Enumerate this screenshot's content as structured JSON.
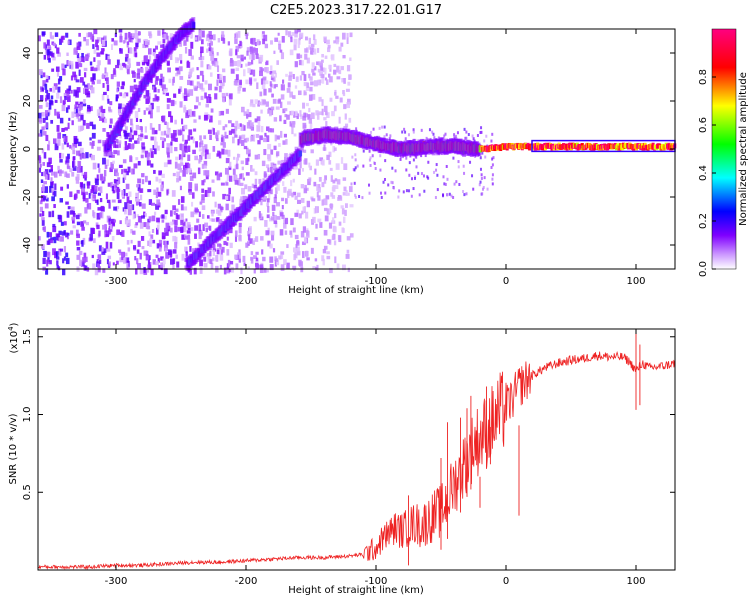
{
  "title": "C2E5.2023.317.22.01.G17",
  "chart_data": [
    {
      "type": "heatmap",
      "xlabel": "Height of straight line (km)",
      "ylabel": "Frequency (Hz)",
      "xlim": [
        -360,
        130
      ],
      "ylim": [
        -50,
        50
      ],
      "x_ticks": [
        -300,
        -200,
        -100,
        0,
        100
      ],
      "x_tick_labels": [
        "-300",
        "-200",
        "-100",
        "0",
        "100"
      ],
      "y_ticks": [
        -40,
        -20,
        0,
        20,
        40
      ],
      "y_tick_labels": [
        "-40",
        "-20",
        "0",
        "20",
        "40"
      ],
      "colorbar": {
        "label": "Normalized spectral amplitude",
        "range": [
          0.0,
          1.0
        ],
        "ticks": [
          0.0,
          0.2,
          0.4,
          0.6,
          0.8
        ],
        "tick_labels": [
          "0.0",
          "0.2",
          "0.4",
          "0.6",
          "0.8"
        ],
        "colormap": [
          "#ffffff",
          "#7f00ff",
          "#0000ff",
          "#00ffff",
          "#00ff00",
          "#ffff00",
          "#ff0000",
          "#ff0080"
        ]
      },
      "tracks": [
        {
          "name_hidden": true,
          "x": [
            -308,
            -295,
            -280,
            -265,
            -250,
            -240
          ],
          "y": [
            0,
            12,
            26,
            38,
            48,
            52
          ],
          "amplitude": 0.3
        },
        {
          "name_hidden": true,
          "x": [
            -245,
            -230,
            -215,
            -200,
            -185,
            -170,
            -158
          ],
          "y": [
            -48,
            -40,
            -32,
            -24,
            -16,
            -8,
            -2
          ],
          "amplitude": 0.35
        },
        {
          "name_hidden": true,
          "x": [
            -158,
            -140,
            -120,
            -100,
            -80,
            -60,
            -40,
            -20,
            0,
            40,
            80,
            130
          ],
          "y": [
            4,
            6,
            5,
            2,
            0,
            1,
            1,
            0,
            1,
            1,
            1,
            1
          ],
          "amplitude": 0.75
        }
      ],
      "noise_region": {
        "x_from": -360,
        "x_to": -120,
        "amplitude": 0.15
      }
    },
    {
      "type": "line",
      "xlabel": "Height of straight line (km)",
      "ylabel": "SNR (10 * v/v)",
      "y_exponent_label": "(x10",
      "y_exponent_sup": "4",
      "y_exponent_close": ")",
      "xlim": [
        -360,
        130
      ],
      "ylim": [
        0.0,
        1.55
      ],
      "x_ticks": [
        -300,
        -200,
        -100,
        0,
        100
      ],
      "x_tick_labels": [
        "-300",
        "-200",
        "-100",
        "0",
        "100"
      ],
      "y_ticks": [
        0.5,
        1.0,
        1.5
      ],
      "y_tick_labels": [
        "0.5",
        "1.0",
        "1.5"
      ],
      "color": "#ee2222",
      "series": [
        {
          "x": [
            -360,
            -340,
            -320,
            -300,
            -280,
            -260,
            -240,
            -220,
            -200,
            -180,
            -160,
            -140,
            -120,
            -110,
            -100,
            -95,
            -90,
            -85,
            -80,
            -75,
            -70,
            -65,
            -60,
            -55,
            -50,
            -45,
            -40,
            -35,
            -30,
            -25,
            -20,
            -15,
            -10,
            -5,
            0,
            5,
            10,
            20,
            30,
            40,
            50,
            60,
            70,
            80,
            90,
            95,
            100,
            105,
            110,
            120,
            130
          ],
          "y": [
            0.02,
            0.02,
            0.02,
            0.03,
            0.03,
            0.04,
            0.05,
            0.05,
            0.06,
            0.07,
            0.08,
            0.08,
            0.09,
            0.1,
            0.14,
            0.2,
            0.24,
            0.27,
            0.25,
            0.28,
            0.3,
            0.28,
            0.32,
            0.35,
            0.38,
            0.45,
            0.55,
            0.62,
            0.72,
            0.8,
            0.85,
            0.9,
            0.95,
            1.0,
            1.05,
            1.1,
            1.18,
            1.25,
            1.3,
            1.33,
            1.35,
            1.36,
            1.38,
            1.37,
            1.37,
            1.34,
            1.28,
            1.33,
            1.3,
            1.31,
            1.33
          ]
        }
      ],
      "spikes": [
        {
          "x": -75,
          "y": 0.48
        },
        {
          "x": -50,
          "y": 0.72
        },
        {
          "x": -45,
          "y": 0.95
        },
        {
          "x": -35,
          "y": 0.98
        },
        {
          "x": -30,
          "y": 1.04
        },
        {
          "x": -27,
          "y": 1.12
        },
        {
          "x": -20,
          "y": 0.4
        },
        {
          "x": -15,
          "y": 1.18
        },
        {
          "x": -12,
          "y": 0.92
        },
        {
          "x": 10,
          "y": 0.35
        },
        {
          "x": 100,
          "y": 1.52
        },
        {
          "x": 103,
          "y": 1.45
        }
      ]
    }
  ]
}
